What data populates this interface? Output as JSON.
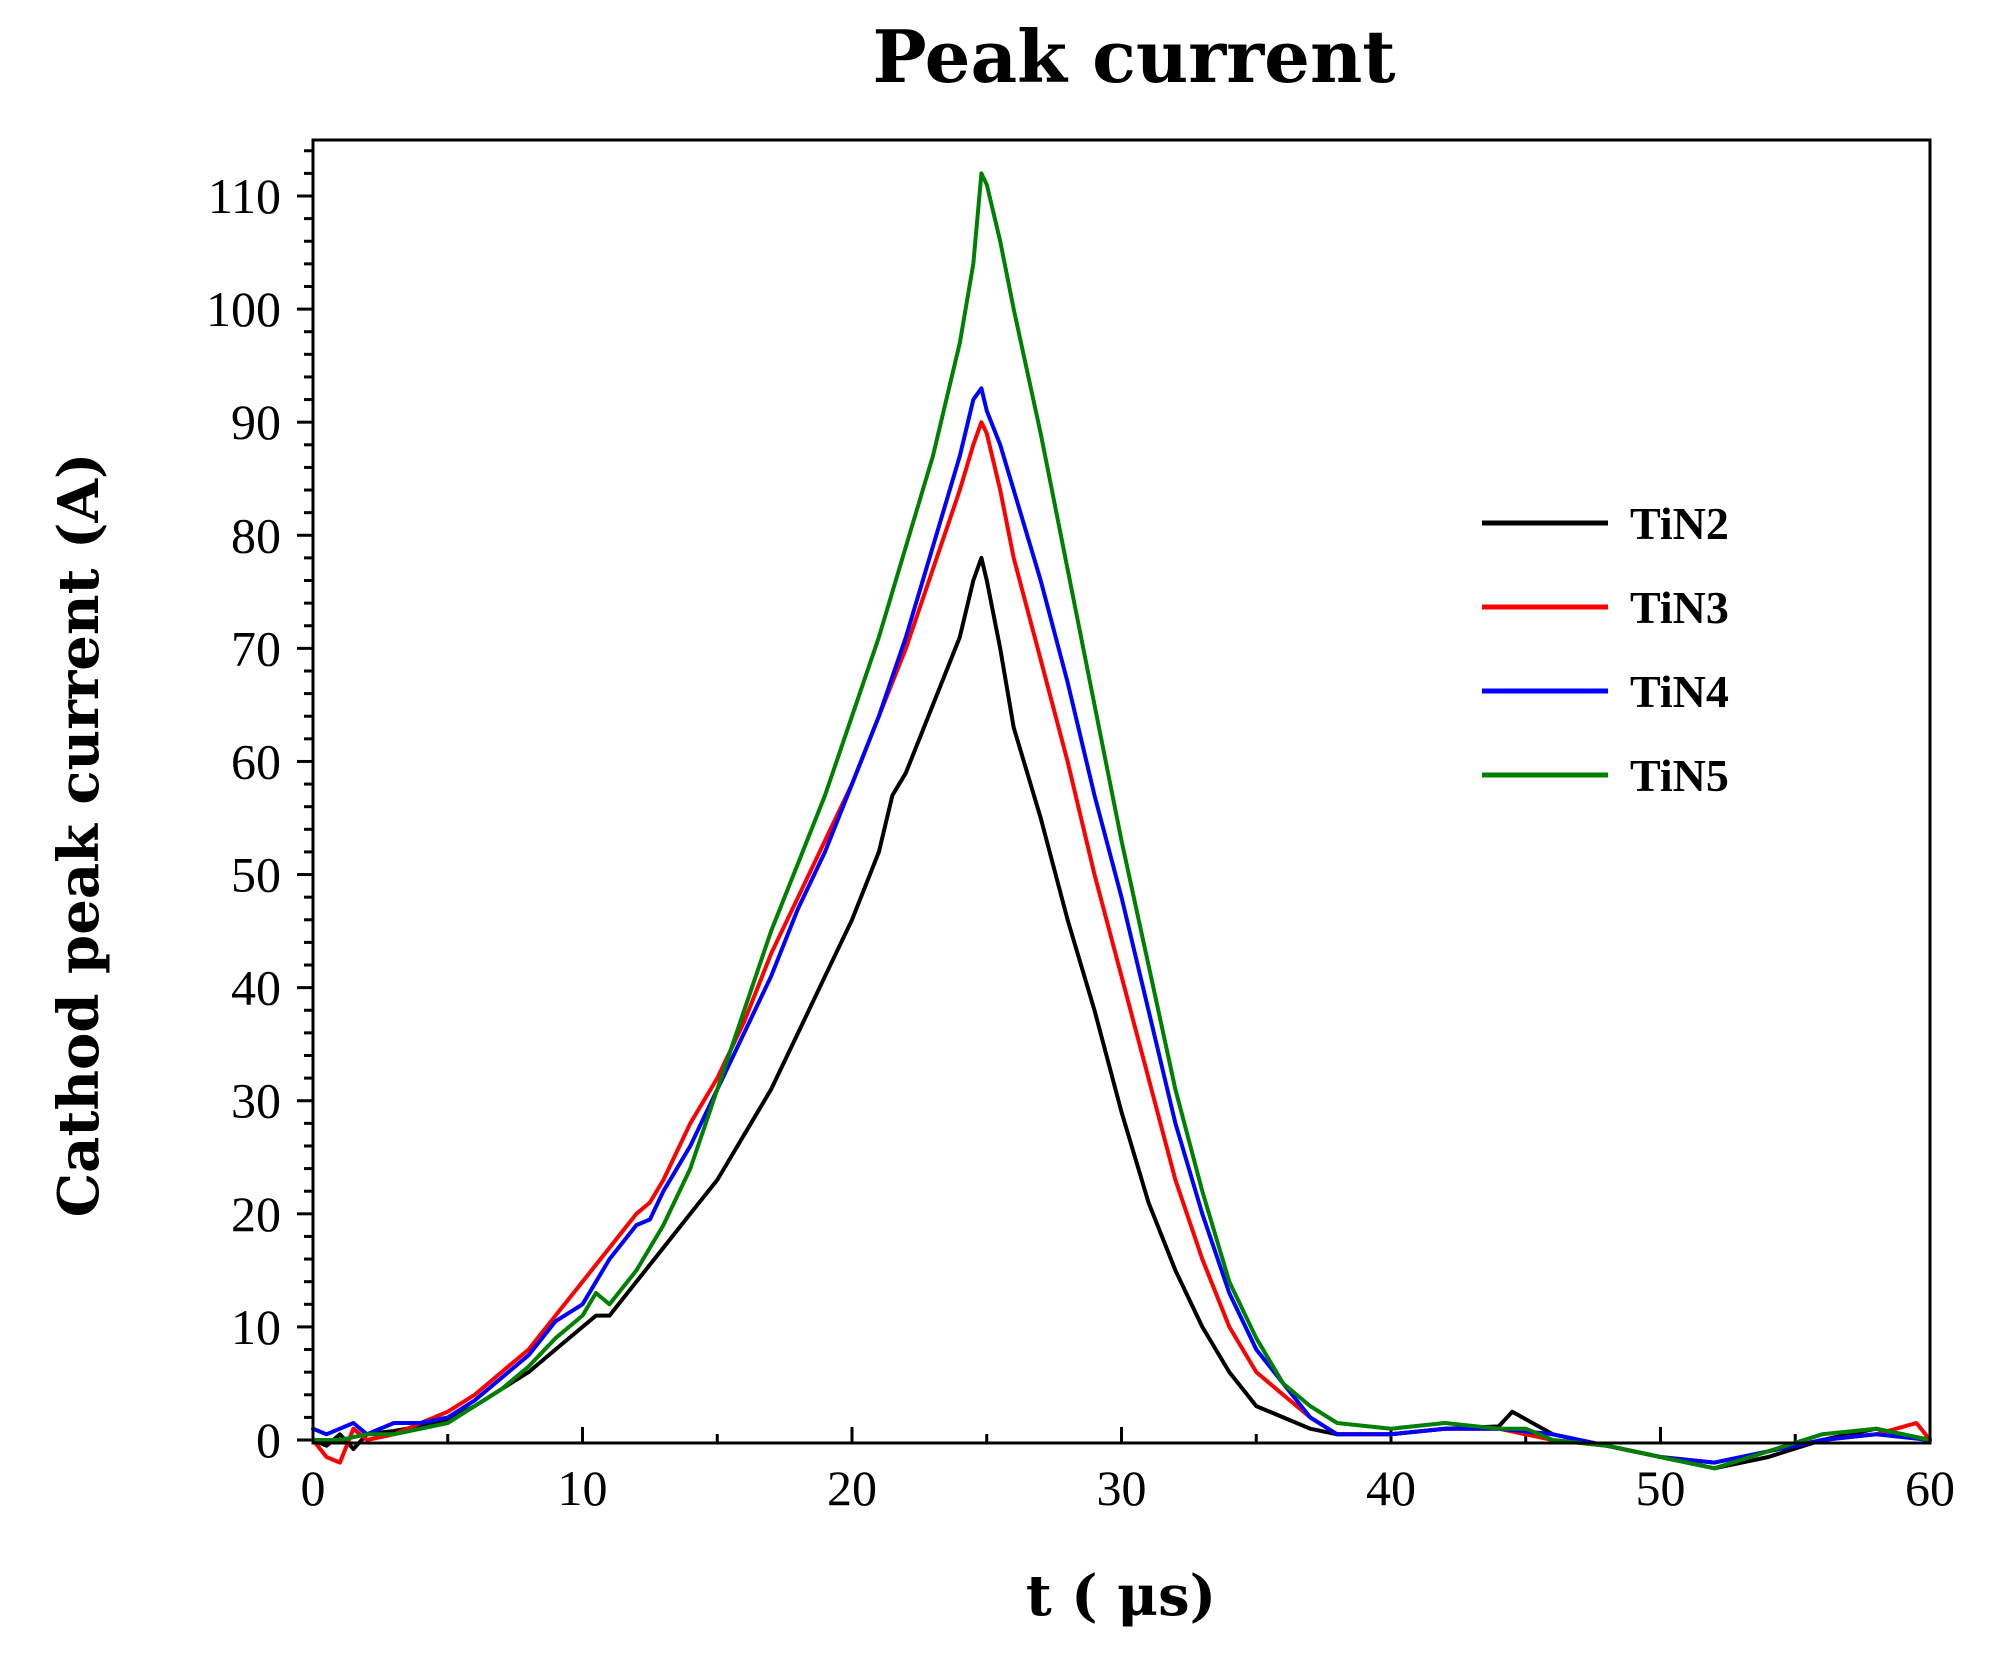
{
  "chart_data": {
    "type": "line",
    "title": "Peak current",
    "xlabel": "t ( μs)",
    "ylabel": "Cathod peak current (A)",
    "xlim": [
      0,
      60
    ],
    "ylim": [
      -4,
      115
    ],
    "xticks": [
      0,
      10,
      20,
      30,
      40,
      50,
      60
    ],
    "yticks": [
      0,
      10,
      20,
      30,
      40,
      50,
      60,
      70,
      80,
      90,
      100,
      110
    ],
    "legend_position": "right",
    "series": [
      {
        "name": "TiN2",
        "color": "#000000",
        "x": [
          0,
          0.5,
          1,
          1.5,
          2,
          3,
          4,
          5,
          6,
          7,
          8,
          9,
          10,
          10.5,
          11,
          12,
          13,
          14,
          15,
          16,
          17,
          18,
          19,
          20,
          21,
          21.5,
          22,
          23,
          24,
          24.5,
          24.8,
          25,
          25.5,
          26,
          27,
          28,
          29,
          30,
          31,
          32,
          33,
          34,
          35,
          36,
          37,
          38,
          39,
          40,
          42,
          44,
          44.5,
          46,
          48,
          50,
          52,
          54,
          56,
          58,
          60
        ],
        "y": [
          0,
          -0.5,
          0.5,
          -0.8,
          0.5,
          0.8,
          1.2,
          1.8,
          3,
          4.5,
          6,
          8,
          10,
          11,
          11,
          14,
          17,
          20,
          23,
          27,
          31,
          36,
          41,
          46,
          52,
          57,
          59,
          65,
          71,
          76,
          78,
          76,
          70,
          63,
          55,
          46,
          38,
          29,
          21,
          15,
          10,
          6,
          3,
          2,
          1,
          0.5,
          0.5,
          0.5,
          1,
          1.2,
          2.5,
          0.5,
          -0.5,
          -1.5,
          -2.5,
          -1.5,
          0,
          1,
          0
        ]
      },
      {
        "name": "TiN3",
        "color": "#ff0000",
        "x": [
          0,
          0.5,
          1,
          1.5,
          2,
          3,
          4,
          5,
          6,
          7,
          8,
          9,
          10,
          11,
          12,
          12.5,
          13,
          14,
          15,
          16,
          17,
          18,
          19,
          20,
          21,
          22,
          23,
          24,
          24.5,
          24.8,
          25,
          25.5,
          26,
          27,
          28,
          29,
          30,
          31,
          32,
          33,
          34,
          35,
          36,
          37,
          38,
          40,
          42,
          44,
          46,
          48,
          50,
          52,
          54,
          56,
          58,
          59.5,
          60
        ],
        "y": [
          0,
          -1.5,
          -2,
          1,
          0,
          0.5,
          1.5,
          2.5,
          4,
          6,
          8,
          11,
          14,
          17,
          20,
          21,
          23,
          28,
          32,
          37,
          43,
          48,
          53,
          58,
          64,
          70,
          77,
          84,
          88,
          90,
          89,
          84,
          78,
          69,
          60,
          50,
          41,
          32,
          23,
          16,
          10,
          6,
          4,
          2,
          0.5,
          0.5,
          1,
          1,
          0,
          -0.5,
          -1.5,
          -2,
          -1,
          0,
          0.5,
          1.5,
          0
        ]
      },
      {
        "name": "TiN4",
        "color": "#0000ff",
        "x": [
          0,
          0.5,
          1,
          1.5,
          2,
          3,
          4,
          5,
          6,
          7,
          8,
          9,
          10,
          11,
          12,
          12.5,
          13,
          14,
          15,
          16,
          17,
          18,
          19,
          20,
          21,
          22,
          23,
          24,
          24.5,
          24.8,
          25,
          25.5,
          26,
          27,
          28,
          29,
          30,
          31,
          32,
          33,
          34,
          35,
          36,
          37,
          38,
          40,
          42,
          44,
          46,
          48,
          50,
          52,
          54,
          56,
          58,
          60
        ],
        "y": [
          1,
          0.5,
          1,
          1.5,
          0.5,
          1.5,
          1.5,
          2,
          3.5,
          5.5,
          7.5,
          10.5,
          12,
          16,
          19,
          19.5,
          22,
          26,
          31,
          36,
          41,
          47,
          52,
          58,
          64,
          71,
          79,
          87,
          92,
          93,
          91,
          88,
          84,
          76,
          67,
          57,
          48,
          38,
          28,
          20,
          13,
          8,
          5,
          2,
          0.5,
          0.5,
          1,
          1,
          0.5,
          -0.5,
          -1.5,
          -2,
          -1,
          0,
          0.5,
          0
        ]
      },
      {
        "name": "TiN5",
        "color": "#008000",
        "x": [
          0,
          1,
          2,
          3,
          4,
          5,
          6,
          7,
          8,
          9,
          10,
          10.5,
          11,
          12,
          13,
          14,
          15,
          16,
          17,
          18,
          19,
          20,
          21,
          22,
          23,
          24,
          24.5,
          24.8,
          25,
          25.5,
          26,
          27,
          28,
          29,
          30,
          31,
          32,
          33,
          34,
          35,
          36,
          37,
          38,
          40,
          42,
          44,
          45,
          46,
          48,
          50,
          52,
          54,
          56,
          58,
          60
        ],
        "y": [
          0,
          0,
          0.5,
          0.5,
          1,
          1.5,
          3,
          4.5,
          6.5,
          9,
          11,
          13,
          12,
          15,
          19,
          24,
          31,
          38,
          45,
          51,
          57,
          64,
          71,
          79,
          87,
          97,
          104,
          112,
          111,
          106,
          100,
          89,
          77,
          65,
          53,
          42,
          31,
          22,
          14,
          9,
          5,
          3,
          1.5,
          1,
          1.5,
          1,
          1,
          0,
          -0.5,
          -1.5,
          -2.5,
          -1,
          0.5,
          1,
          0
        ]
      }
    ]
  }
}
